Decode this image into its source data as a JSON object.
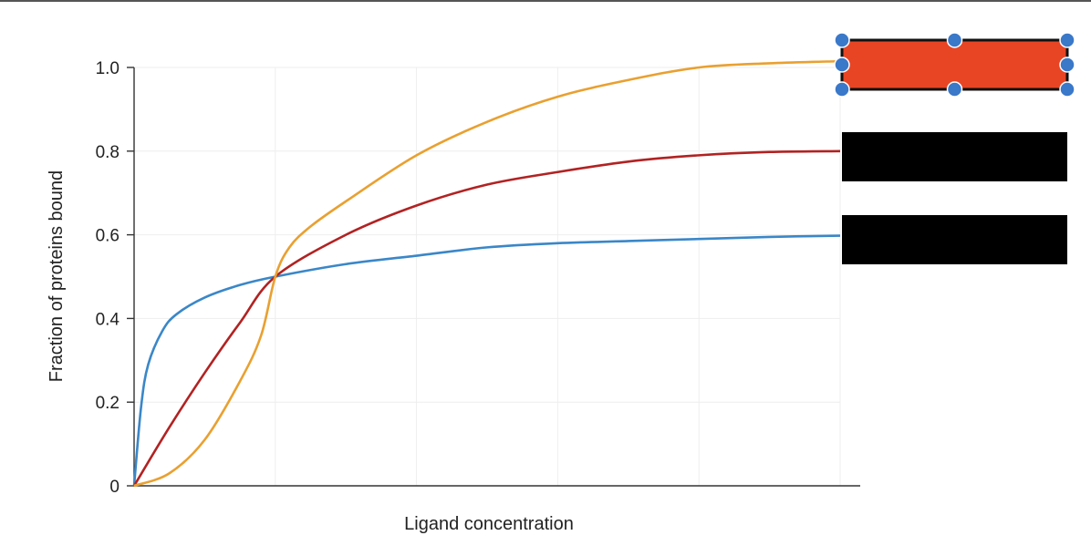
{
  "chart_data": {
    "type": "line",
    "title": "",
    "xlabel": "Ligand concentration",
    "ylabel": "Fraction of proteins bound",
    "xlim": [
      0,
      5
    ],
    "ylim": [
      0,
      1.0
    ],
    "x_ticks_labeled": false,
    "y_ticks": [
      "0",
      "0.2",
      "0.4",
      "0.6",
      "0.8",
      "1.0"
    ],
    "y_tick_values": [
      0,
      0.2,
      0.4,
      0.6,
      0.8,
      1.0
    ],
    "grid": true,
    "series": [
      {
        "color": "#3a87c8",
        "x": [
          0,
          0.05,
          0.1,
          0.2,
          0.3,
          0.5,
          0.75,
          1,
          1.5,
          2,
          2.5,
          3,
          3.5,
          4,
          4.5,
          5
        ],
        "values": [
          0,
          0.19,
          0.29,
          0.37,
          0.41,
          0.45,
          0.48,
          0.5,
          0.53,
          0.55,
          0.57,
          0.58,
          0.585,
          0.59,
          0.595,
          0.598
        ]
      },
      {
        "color": "#b22222",
        "x": [
          0,
          0.25,
          0.5,
          0.75,
          1,
          1.5,
          2,
          2.5,
          3,
          3.5,
          4,
          4.5,
          5
        ],
        "values": [
          0,
          0.14,
          0.27,
          0.39,
          0.5,
          0.6,
          0.67,
          0.72,
          0.75,
          0.775,
          0.79,
          0.798,
          0.8
        ]
      },
      {
        "color": "#e9a030",
        "x": [
          0,
          0.25,
          0.5,
          0.75,
          0.9,
          1,
          1.1,
          1.25,
          1.5,
          2,
          2.5,
          3,
          3.5,
          4,
          4.5,
          5
        ],
        "values": [
          0,
          0.03,
          0.11,
          0.25,
          0.36,
          0.5,
          0.57,
          0.62,
          0.68,
          0.79,
          0.87,
          0.93,
          0.97,
          1.0,
          1.01,
          1.015
        ]
      }
    ],
    "legend": {
      "placement": "right",
      "entries": [
        {
          "fill": "#e84524",
          "selected": true
        },
        {
          "fill": "#000000",
          "selected": false
        },
        {
          "fill": "#000000",
          "selected": false
        }
      ]
    }
  }
}
